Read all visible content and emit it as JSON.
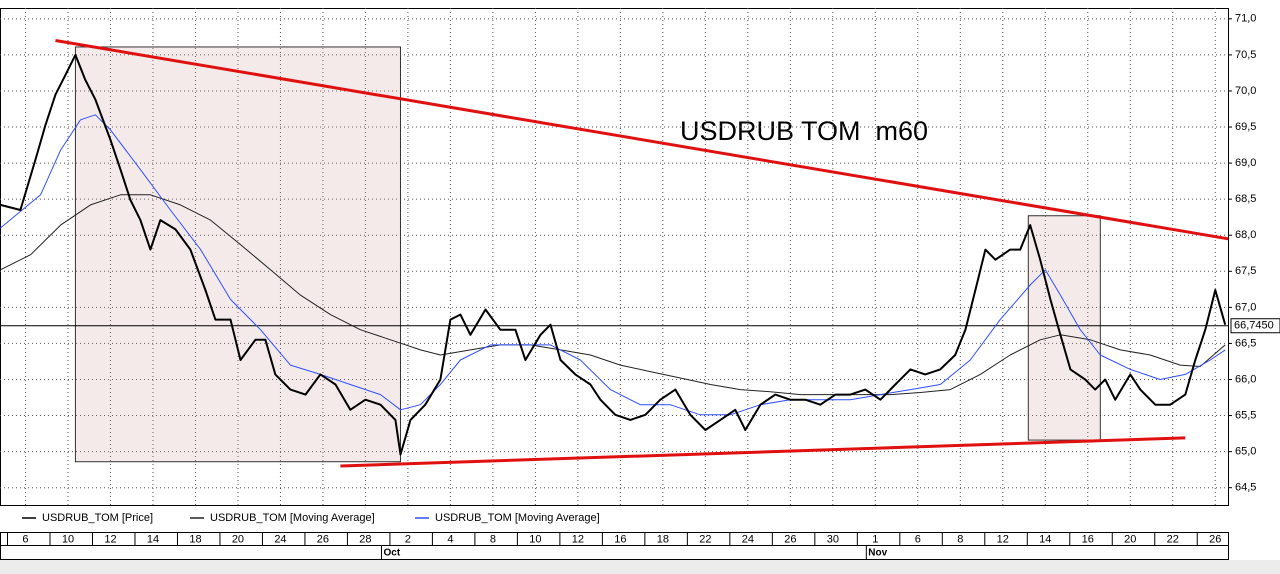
{
  "chart_data": {
    "type": "line",
    "title": "USDRUB TOM  m60",
    "series": [
      {
        "name": "USDRUB_TOM [Price]",
        "color": "#000000",
        "x": [
          -1.18,
          -0.24,
          0.47,
          0.94,
          1.41,
          1.88,
          2.35,
          2.82,
          3.29,
          4.0,
          4.47,
          4.94,
          5.41,
          5.88,
          6.35,
          7.06,
          7.76,
          8.47,
          8.94,
          9.65,
          10.12,
          10.82,
          11.29,
          11.76,
          12.47,
          13.18,
          13.88,
          14.59,
          15.29,
          16.0,
          16.71,
          17.41,
          17.65,
          18.12,
          18.82,
          19.53,
          20.0,
          20.47,
          20.94,
          21.65,
          22.35,
          23.06,
          23.53,
          24.24,
          24.71,
          25.18,
          25.88,
          26.59,
          27.06,
          27.76,
          28.47,
          29.18,
          29.88,
          30.59,
          31.29,
          32.0,
          32.71,
          33.41,
          33.88,
          34.59,
          35.29,
          36.0,
          36.71,
          37.41,
          38.12,
          38.82,
          39.53,
          40.24,
          40.94,
          41.65,
          42.35,
          43.06,
          43.76,
          44.24,
          44.71,
          45.18,
          45.65,
          46.35,
          46.82,
          47.29,
          47.76,
          48.24,
          48.71,
          49.18,
          49.88,
          50.35,
          50.82,
          51.29,
          52.0,
          52.47,
          53.18,
          53.88,
          54.59,
          55.06,
          55.53,
          56.0,
          56.47
        ],
        "values": [
          68.42,
          68.35,
          69.05,
          69.53,
          69.95,
          70.22,
          70.5,
          70.15,
          69.88,
          69.32,
          68.91,
          68.49,
          68.21,
          67.8,
          68.21,
          68.08,
          67.8,
          67.24,
          66.83,
          66.83,
          66.27,
          66.55,
          66.55,
          66.07,
          65.86,
          65.79,
          66.07,
          65.93,
          65.58,
          65.72,
          65.65,
          65.44,
          64.96,
          65.44,
          65.65,
          66.0,
          66.83,
          66.9,
          66.62,
          66.97,
          66.69,
          66.69,
          66.27,
          66.62,
          66.76,
          66.27,
          66.07,
          65.93,
          65.72,
          65.51,
          65.44,
          65.51,
          65.72,
          65.86,
          65.51,
          65.3,
          65.44,
          65.58,
          65.3,
          65.65,
          65.79,
          65.72,
          65.72,
          65.65,
          65.79,
          65.79,
          65.86,
          65.72,
          65.93,
          66.14,
          66.07,
          66.14,
          66.34,
          66.69,
          67.24,
          67.8,
          67.66,
          67.8,
          67.8,
          68.14,
          67.66,
          67.11,
          66.62,
          66.14,
          66.0,
          65.86,
          66.0,
          65.72,
          66.07,
          65.86,
          65.65,
          65.65,
          65.79,
          66.27,
          66.69,
          67.24,
          66.76
        ]
      },
      {
        "name": "USDRUB_TOM [Moving Average]",
        "color": "#222222",
        "x": [
          -1.18,
          0.24,
          1.65,
          3.06,
          4.47,
          5.88,
          7.29,
          8.71,
          10.12,
          11.53,
          12.94,
          14.35,
          15.76,
          17.18,
          18.59,
          19.53,
          20.94,
          22.35,
          23.76,
          25.18,
          26.59,
          28.0,
          29.41,
          30.82,
          32.24,
          33.65,
          35.06,
          36.47,
          37.88,
          39.29,
          40.71,
          42.12,
          43.53,
          44.94,
          46.35,
          47.76,
          48.71,
          50.12,
          51.53,
          52.94,
          54.35,
          55.29,
          56.47
        ],
        "values": [
          67.52,
          67.73,
          68.14,
          68.42,
          68.56,
          68.56,
          68.42,
          68.21,
          67.87,
          67.52,
          67.17,
          66.9,
          66.69,
          66.55,
          66.41,
          66.34,
          66.41,
          66.48,
          66.48,
          66.41,
          66.34,
          66.2,
          66.11,
          66.02,
          65.93,
          65.86,
          65.83,
          65.79,
          65.79,
          65.79,
          65.79,
          65.82,
          65.86,
          66.07,
          66.34,
          66.55,
          66.62,
          66.55,
          66.41,
          66.34,
          66.2,
          66.18,
          66.48
        ]
      },
      {
        "name": "USDRUB_TOM [Moving Average]",
        "color": "#2f4fff",
        "x": [
          -1.18,
          0.71,
          1.65,
          2.59,
          3.29,
          4.0,
          5.41,
          6.82,
          8.24,
          9.65,
          11.06,
          12.47,
          13.88,
          15.29,
          16.71,
          17.65,
          18.59,
          19.53,
          20.47,
          21.88,
          23.29,
          24.71,
          26.12,
          27.53,
          28.94,
          30.35,
          31.76,
          33.18,
          34.59,
          36.0,
          37.41,
          38.82,
          40.24,
          41.65,
          43.06,
          44.47,
          45.88,
          47.29,
          48.0,
          48.71,
          49.65,
          50.59,
          52.0,
          53.41,
          54.59,
          55.76,
          56.47
        ],
        "values": [
          68.1,
          68.56,
          69.18,
          69.6,
          69.67,
          69.46,
          68.91,
          68.35,
          67.8,
          67.11,
          66.69,
          66.2,
          66.07,
          65.93,
          65.79,
          65.58,
          65.65,
          65.93,
          66.27,
          66.48,
          66.48,
          66.48,
          66.27,
          65.86,
          65.65,
          65.65,
          65.51,
          65.51,
          65.65,
          65.72,
          65.72,
          65.72,
          65.79,
          65.86,
          65.93,
          66.27,
          66.83,
          67.31,
          67.52,
          67.17,
          66.69,
          66.34,
          66.14,
          66.0,
          66.07,
          66.27,
          66.41
        ]
      }
    ],
    "trend_lines": [
      {
        "color": "#e01010",
        "x": [
          1.41,
          56.61
        ],
        "values": [
          70.7,
          67.95
        ]
      },
      {
        "color": "#e01010",
        "x": [
          14.82,
          54.59
        ],
        "values": [
          64.8,
          65.19
        ]
      }
    ],
    "boxes": [
      {
        "x": [
          2.35,
          17.65
        ],
        "values": [
          70.61,
          64.86
        ]
      },
      {
        "x": [
          47.2,
          50.59
        ],
        "values": [
          68.27,
          65.16
        ]
      }
    ],
    "last_price": {
      "value": 66.745,
      "label": "66,7450"
    },
    "xlim": [
      -1.2,
      56.6
    ],
    "xticks": [
      {
        "value": 0,
        "label": "6"
      },
      {
        "value": 2,
        "label": "10"
      },
      {
        "value": 4,
        "label": "12"
      },
      {
        "value": 6,
        "label": "14"
      },
      {
        "value": 8,
        "label": "18"
      },
      {
        "value": 10,
        "label": "20"
      },
      {
        "value": 12,
        "label": "24"
      },
      {
        "value": 14,
        "label": "26"
      },
      {
        "value": 16,
        "label": "28"
      },
      {
        "value": 18,
        "label": "2"
      },
      {
        "value": 20,
        "label": "4"
      },
      {
        "value": 22,
        "label": "8"
      },
      {
        "value": 24,
        "label": "10"
      },
      {
        "value": 26,
        "label": "12"
      },
      {
        "value": 28,
        "label": "16"
      },
      {
        "value": 30,
        "label": "18"
      },
      {
        "value": 32,
        "label": "22"
      },
      {
        "value": 34,
        "label": "24"
      },
      {
        "value": 36,
        "label": "26"
      },
      {
        "value": 38,
        "label": "30"
      },
      {
        "value": 40,
        "label": "1"
      },
      {
        "value": 42,
        "label": "6"
      },
      {
        "value": 44,
        "label": "8"
      },
      {
        "value": 46,
        "label": "12"
      },
      {
        "value": 48,
        "label": "14"
      },
      {
        "value": 50,
        "label": "16"
      },
      {
        "value": 52,
        "label": "20"
      },
      {
        "value": 54,
        "label": "22"
      },
      {
        "value": 56,
        "label": "26"
      }
    ],
    "month_labels": [
      {
        "value": 16.85,
        "label": "Oct"
      },
      {
        "value": 39.67,
        "label": "Nov"
      }
    ],
    "ylim": [
      64.26,
      71.15
    ],
    "yticks": [
      {
        "value": 64.5,
        "label": "64,5"
      },
      {
        "value": 65,
        "label": "65,0"
      },
      {
        "value": 65.5,
        "label": "65,5"
      },
      {
        "value": 66,
        "label": "66,0"
      },
      {
        "value": 66.5,
        "label": "66,5"
      },
      {
        "value": 67,
        "label": "67,0"
      },
      {
        "value": 67.5,
        "label": "67,5"
      },
      {
        "value": 68,
        "label": "68,0"
      },
      {
        "value": 68.5,
        "label": "68,5"
      },
      {
        "value": 69,
        "label": "69,0"
      },
      {
        "value": 69.5,
        "label": "69,5"
      },
      {
        "value": 70,
        "label": "70,0"
      },
      {
        "value": 70.5,
        "label": "70,5"
      },
      {
        "value": 71,
        "label": "71,0"
      }
    ],
    "grid": true
  }
}
